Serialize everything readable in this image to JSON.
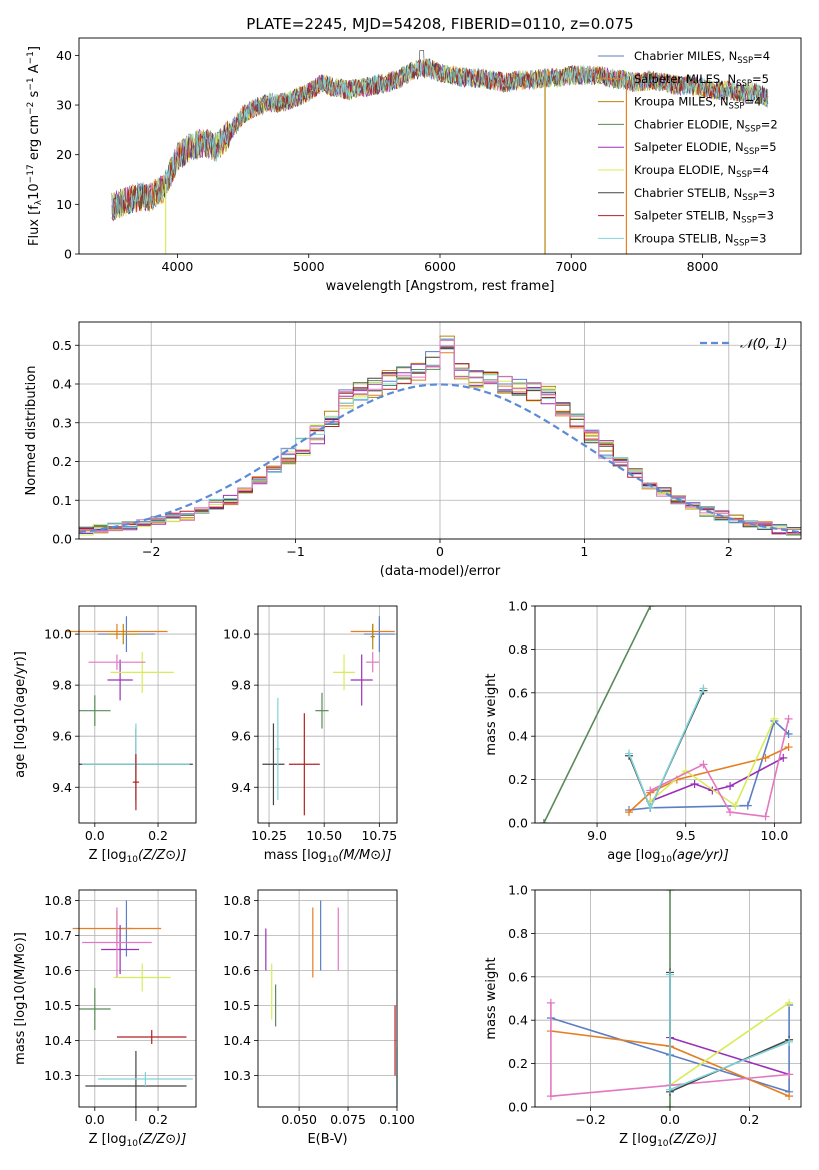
{
  "figure": {
    "title": "PLATE=2245, MJD=54208, FIBERID=0110, z=0.075"
  },
  "palette": {
    "miles_chab": "#5b7ec4",
    "miles_salp": "#e67e22",
    "miles_krou": "#b8860b",
    "elodie_chab": "#5a8a5a",
    "elodie_salp": "#9b30b8",
    "elodie_krou": "#d8ec5a",
    "stelib_chab": "#444444",
    "stelib_salp": "#b22222",
    "stelib_krou": "#7fd3d9",
    "hist_mix1": "#e377c2",
    "normal_curve": "#5b8bd6"
  },
  "chart_data": [
    {
      "id": "spectrum",
      "type": "line",
      "title": "PLATE=2245, MJD=54208, FIBERID=0110, z=0.075",
      "xlabel": "wavelength [Angstrom, rest frame]",
      "ylabel": "Flux [f_λ10^-17 erg cm^-2 s^-1 A^-1]",
      "xlim": [
        3250,
        8750
      ],
      "ylim": [
        0,
        43.5
      ],
      "xticks": [
        "4000",
        "5000",
        "6000",
        "7000",
        "8000"
      ],
      "yticks": [
        "0",
        "10",
        "20",
        "30",
        "40"
      ],
      "grid": false,
      "legend_position": "top-right",
      "series": [
        {
          "name": "Chabrier MILES, N_SSP=4",
          "color": "miles_chab"
        },
        {
          "name": "Salpeter MILES, N_SSP=5",
          "color": "miles_salp"
        },
        {
          "name": "Kroupa MILES, N_SSP=4",
          "color": "miles_krou"
        },
        {
          "name": "Chabrier ELODIE, N_SSP=2",
          "color": "elodie_chab"
        },
        {
          "name": "Salpeter ELODIE, N_SSP=5",
          "color": "elodie_salp"
        },
        {
          "name": "Kroupa ELODIE, N_SSP=4",
          "color": "elodie_krou"
        },
        {
          "name": "Chabrier STELIB, N_SSP=3",
          "color": "stelib_chab"
        },
        {
          "name": "Salpeter STELIB, N_SSP=3",
          "color": "stelib_salp"
        },
        {
          "name": "Kroupa STELIB, N_SSP=3",
          "color": "stelib_krou"
        }
      ],
      "envelope": {
        "x": [
          3500,
          3600,
          3700,
          3800,
          3900,
          4000,
          4100,
          4200,
          4300,
          4400,
          4500,
          4600,
          4700,
          4800,
          4900,
          5000,
          5100,
          5200,
          5300,
          5400,
          5500,
          5600,
          5700,
          5800,
          5900,
          6000,
          6100,
          6200,
          6300,
          6400,
          6500,
          6600,
          6700,
          6800,
          6900,
          7000,
          7100,
          7200,
          7300,
          7400,
          7500,
          7600,
          7700,
          7800,
          7900,
          8000,
          8100,
          8200,
          8300,
          8400,
          8500
        ],
        "y": [
          9.5,
          10.5,
          11.5,
          11.5,
          13.5,
          19.5,
          21.5,
          22.5,
          21.5,
          24.5,
          28.0,
          29.5,
          30.5,
          30.5,
          31.5,
          32.5,
          34.5,
          33.5,
          33.0,
          33.5,
          34.0,
          34.5,
          35.5,
          37.0,
          37.5,
          36.5,
          36.0,
          35.5,
          35.5,
          35.0,
          34.5,
          35.0,
          35.0,
          35.5,
          35.5,
          36.0,
          36.0,
          36.0,
          35.5,
          35.0,
          34.5,
          35.0,
          34.5,
          34.0,
          34.0,
          33.5,
          33.0,
          33.0,
          32.5,
          32.5,
          31.5
        ]
      },
      "dips": [
        {
          "x": 3910,
          "y": 0
        },
        {
          "x": 6800,
          "y": 0
        },
        {
          "x": 7420,
          "y": 0
        }
      ]
    },
    {
      "id": "residuals",
      "type": "line",
      "xlabel": "(data-model)/error",
      "ylabel": "Normed distribution",
      "xlim": [
        -2.5,
        2.5
      ],
      "ylim": [
        0,
        0.56
      ],
      "xticks": [
        -2,
        -1,
        0,
        1,
        2
      ],
      "xticklabels": [
        "−2",
        "−1",
        "0",
        "1",
        "2"
      ],
      "yticks": [
        0.0,
        0.1,
        0.2,
        0.3,
        0.4,
        0.5
      ],
      "yticklabels": [
        "0.0",
        "0.1",
        "0.2",
        "0.3",
        "0.4",
        "0.5"
      ],
      "grid": true,
      "legend_position": "top-right",
      "legend_label": "𝒩(0, 1)",
      "bin_width": 0.1,
      "bin_start": -2.5,
      "histogram": [
        0.02,
        0.025,
        0.03,
        0.035,
        0.04,
        0.05,
        0.055,
        0.06,
        0.075,
        0.09,
        0.1,
        0.12,
        0.15,
        0.18,
        0.21,
        0.24,
        0.27,
        0.31,
        0.36,
        0.38,
        0.39,
        0.41,
        0.42,
        0.43,
        0.46,
        0.5,
        0.43,
        0.41,
        0.41,
        0.4,
        0.39,
        0.38,
        0.37,
        0.34,
        0.3,
        0.27,
        0.23,
        0.2,
        0.17,
        0.14,
        0.12,
        0.1,
        0.085,
        0.07,
        0.06,
        0.05,
        0.04,
        0.035,
        0.025,
        0.02
      ]
    },
    {
      "id": "age_vs_Z",
      "type": "scatter",
      "xlabel": "Z [log10(Z/Z⊙)]",
      "ylabel": "age  [log10(age/yr)]",
      "xlim": [
        -0.05,
        0.32
      ],
      "ylim": [
        9.26,
        10.11
      ],
      "xticks": [
        0.0,
        0.2
      ],
      "xticklabels": [
        "0.0",
        "0.2"
      ],
      "yticks": [
        9.4,
        9.6,
        9.8,
        10.0
      ],
      "yticklabels": [
        "9.4",
        "9.6",
        "9.8",
        "10.0"
      ],
      "points": [
        {
          "x": 0.1,
          "y": 10.0,
          "xerr": 0.09,
          "yerr": 0.07,
          "color": "miles_chab"
        },
        {
          "x": 0.07,
          "y": 10.01,
          "xerr": 0.16,
          "yerr": 0.03,
          "color": "miles_salp"
        },
        {
          "x": 0.09,
          "y": 10.0,
          "xerr": 0.05,
          "yerr": 0.04,
          "color": "miles_krou"
        },
        {
          "x": 0.08,
          "y": 9.82,
          "xerr": 0.04,
          "yerr": 0.08,
          "color": "elodie_salp"
        },
        {
          "x": 0.15,
          "y": 9.85,
          "xerr": 0.1,
          "yerr": 0.08,
          "color": "elodie_krou"
        },
        {
          "x": 0.0,
          "y": 9.7,
          "xerr": 0.05,
          "yerr": 0.06,
          "color": "elodie_chab"
        },
        {
          "x": 0.13,
          "y": 9.49,
          "xerr": 0.18,
          "yerr": 0.14,
          "color": "stelib_chab"
        },
        {
          "x": 0.13,
          "y": 9.49,
          "xerr": 0.17,
          "yerr": 0.16,
          "color": "stelib_krou"
        },
        {
          "x": 0.13,
          "y": 9.42,
          "xerr": 0.01,
          "yerr": 0.11,
          "color": "stelib_salp"
        },
        {
          "x": 0.07,
          "y": 9.89,
          "xerr": 0.09,
          "yerr": 0.03,
          "color": "hist_mix1"
        }
      ]
    },
    {
      "id": "age_vs_mass",
      "type": "scatter",
      "xlabel": "mass [log10(M/M⊙)]",
      "xlim": [
        10.2,
        10.83
      ],
      "ylim": [
        9.26,
        10.11
      ],
      "xticks": [
        10.25,
        10.5,
        10.75
      ],
      "xticklabels": [
        "10.25",
        "10.50",
        "10.75"
      ],
      "yticks": [
        9.4,
        9.6,
        9.8,
        10.0
      ],
      "yticklabels": [
        "9.4",
        "9.6",
        "9.8",
        "10.0"
      ],
      "points": [
        {
          "x": 10.75,
          "y": 10.0,
          "xerr": 0.07,
          "yerr": 0.07,
          "color": "miles_chab"
        },
        {
          "x": 10.72,
          "y": 10.01,
          "xerr": 0.1,
          "yerr": 0.03,
          "color": "miles_salp"
        },
        {
          "x": 10.72,
          "y": 9.99,
          "xerr": 0.01,
          "yerr": 0.05,
          "color": "miles_krou"
        },
        {
          "x": 10.67,
          "y": 9.82,
          "xerr": 0.05,
          "yerr": 0.1,
          "color": "elodie_salp"
        },
        {
          "x": 10.59,
          "y": 9.85,
          "xerr": 0.05,
          "yerr": 0.07,
          "color": "elodie_krou"
        },
        {
          "x": 10.49,
          "y": 9.7,
          "xerr": 0.03,
          "yerr": 0.07,
          "color": "elodie_chab"
        },
        {
          "x": 10.27,
          "y": 9.49,
          "xerr": 0.05,
          "yerr": 0.16,
          "color": "stelib_chab"
        },
        {
          "x": 10.29,
          "y": 9.55,
          "xerr": 0.01,
          "yerr": 0.2,
          "color": "stelib_krou"
        },
        {
          "x": 10.41,
          "y": 9.49,
          "xerr": 0.07,
          "yerr": 0.2,
          "color": "stelib_salp"
        },
        {
          "x": 10.72,
          "y": 9.89,
          "xerr": 0.03,
          "yerr": 0.04,
          "color": "hist_mix1"
        }
      ]
    },
    {
      "id": "massweight_vs_age",
      "type": "line",
      "xlabel": "age  [log10(age/yr)]",
      "ylabel": "mass weight",
      "xlim": [
        8.65,
        10.15
      ],
      "ylim": [
        0,
        1.0
      ],
      "xticks": [
        9.0,
        9.5,
        10.0
      ],
      "xticklabels": [
        "9.0",
        "9.5",
        "10.0"
      ],
      "yticks": [
        0.0,
        0.2,
        0.4,
        0.6,
        0.8,
        1.0
      ],
      "yticklabels": [
        "0.0",
        "0.2",
        "0.4",
        "0.6",
        "0.8",
        "1.0"
      ],
      "grid": true,
      "series": [
        {
          "color": "elodie_chab",
          "x": [
            8.7,
            9.3
          ],
          "y": [
            0.0,
            1.0
          ]
        },
        {
          "color": "miles_chab",
          "x": [
            9.18,
            9.3,
            9.85,
            10.0,
            10.08
          ],
          "y": [
            0.06,
            0.07,
            0.08,
            0.47,
            0.41
          ]
        },
        {
          "color": "miles_salp",
          "x": [
            9.18,
            9.3,
            9.45,
            9.95,
            10.08
          ],
          "y": [
            0.05,
            0.14,
            0.2,
            0.3,
            0.35
          ]
        },
        {
          "color": "elodie_salp",
          "x": [
            9.3,
            9.55,
            9.65,
            9.75,
            10.05
          ],
          "y": [
            0.1,
            0.18,
            0.15,
            0.17,
            0.3
          ]
        },
        {
          "color": "elodie_krou",
          "x": [
            9.3,
            9.5,
            9.78,
            10.0
          ],
          "y": [
            0.1,
            0.24,
            0.08,
            0.48
          ]
        },
        {
          "color": "hist_mix1",
          "x": [
            9.3,
            9.6,
            9.75,
            9.95,
            10.08
          ],
          "y": [
            0.15,
            0.27,
            0.05,
            0.03,
            0.48
          ]
        },
        {
          "color": "stelib_chab",
          "x": [
            9.18,
            9.3,
            9.6
          ],
          "y": [
            0.31,
            0.07,
            0.61
          ]
        },
        {
          "color": "stelib_krou",
          "x": [
            9.18,
            9.3,
            9.6
          ],
          "y": [
            0.32,
            0.07,
            0.62
          ]
        }
      ]
    },
    {
      "id": "mass_vs_Z",
      "type": "scatter",
      "xlabel": "Z [log10(Z/Z⊙)]",
      "ylabel": "mass [log10(M/M⊙)]",
      "xlim": [
        -0.05,
        0.32
      ],
      "ylim": [
        10.21,
        10.83
      ],
      "xticks": [
        0.0,
        0.2
      ],
      "xticklabels": [
        "0.0",
        "0.2"
      ],
      "yticks": [
        10.3,
        10.4,
        10.5,
        10.6,
        10.7,
        10.8
      ],
      "yticklabels": [
        "10.3",
        "10.4",
        "10.5",
        "10.6",
        "10.7",
        "10.8"
      ],
      "points": [
        {
          "x": 0.1,
          "y": 10.72,
          "xerr": 0.02,
          "yerr": 0.08,
          "color": "miles_chab"
        },
        {
          "x": 0.07,
          "y": 10.72,
          "xerr": 0.14,
          "yerr": 0.05,
          "color": "miles_salp"
        },
        {
          "x": 0.08,
          "y": 10.66,
          "xerr": 0.06,
          "yerr": 0.07,
          "color": "elodie_salp"
        },
        {
          "x": 0.07,
          "y": 10.68,
          "xerr": 0.11,
          "yerr": 0.1,
          "color": "hist_mix1"
        },
        {
          "x": 0.15,
          "y": 10.58,
          "xerr": 0.09,
          "yerr": 0.04,
          "color": "elodie_krou"
        },
        {
          "x": 0.0,
          "y": 10.49,
          "xerr": 0.05,
          "yerr": 0.06,
          "color": "elodie_chab"
        },
        {
          "x": 0.18,
          "y": 10.41,
          "xerr": 0.11,
          "yerr": 0.02,
          "color": "stelib_salp"
        },
        {
          "x": 0.13,
          "y": 10.27,
          "xerr": 0.16,
          "yerr": 0.1,
          "color": "stelib_chab"
        },
        {
          "x": 0.16,
          "y": 10.29,
          "xerr": 0.15,
          "yerr": 0.02,
          "color": "stelib_krou"
        }
      ]
    },
    {
      "id": "mass_vs_ebv",
      "type": "scatter",
      "xlabel": "E(B-V)",
      "xlim": [
        0.029,
        0.1
      ],
      "ylim": [
        10.21,
        10.83
      ],
      "xticks": [
        0.05,
        0.075,
        0.1
      ],
      "xticklabels": [
        "0.050",
        "0.075",
        "0.100"
      ],
      "yticks": [
        10.3,
        10.4,
        10.5,
        10.6,
        10.7,
        10.8
      ],
      "yticklabels": [
        "10.3",
        "10.4",
        "10.5",
        "10.6",
        "10.7",
        "10.8"
      ],
      "points": [
        {
          "x": 0.033,
          "y": 10.66,
          "xerr": 0,
          "yerr": 0.06,
          "color": "elodie_salp"
        },
        {
          "x": 0.036,
          "y": 10.54,
          "xerr": 0,
          "yerr": 0.08,
          "color": "elodie_krou"
        },
        {
          "x": 0.038,
          "y": 10.5,
          "xerr": 0,
          "yerr": 0.06,
          "color": "elodie_chab"
        },
        {
          "x": 0.057,
          "y": 10.68,
          "xerr": 0,
          "yerr": 0.1,
          "color": "miles_salp"
        },
        {
          "x": 0.061,
          "y": 10.7,
          "xerr": 0,
          "yerr": 0.1,
          "color": "miles_chab"
        },
        {
          "x": 0.07,
          "y": 10.69,
          "xerr": 0,
          "yerr": 0.09,
          "color": "hist_mix1"
        },
        {
          "x": 0.099,
          "y": 10.4,
          "xerr": 0,
          "yerr": 0.1,
          "color": "stelib_salp"
        },
        {
          "x": 0.1,
          "y": 10.3,
          "xerr": 0,
          "yerr": 0.08,
          "color": "stelib_krou"
        }
      ]
    },
    {
      "id": "massweight_vs_Z",
      "type": "line",
      "xlabel": "Z [log10(Z/Z⊙)]",
      "ylabel": "mass weight",
      "xlim": [
        -0.34,
        0.33
      ],
      "ylim": [
        0,
        1.0
      ],
      "xticks": [
        -0.2,
        0.0,
        0.2
      ],
      "xticklabels": [
        "−0.2",
        "0.0",
        "0.2"
      ],
      "yticks": [
        0.0,
        0.2,
        0.4,
        0.6,
        0.8,
        1.0
      ],
      "yticklabels": [
        "0.0",
        "0.2",
        "0.4",
        "0.6",
        "0.8",
        "1.0"
      ],
      "grid": true,
      "series": [
        {
          "color": "elodie_chab",
          "x": [
            0.0,
            0.0
          ],
          "y": [
            0.0,
            1.0
          ]
        },
        {
          "color": "miles_chab",
          "x": [
            -0.3,
            0.0,
            0.3,
            0.3
          ],
          "y": [
            0.41,
            0.24,
            0.07,
            0.47
          ]
        },
        {
          "color": "miles_salp",
          "x": [
            -0.3,
            0.0,
            0.3
          ],
          "y": [
            0.35,
            0.28,
            0.05
          ]
        },
        {
          "color": "elodie_salp",
          "x": [
            0.0,
            0.3
          ],
          "y": [
            0.32,
            0.15
          ]
        },
        {
          "color": "elodie_krou",
          "x": [
            0.0,
            0.3
          ],
          "y": [
            0.1,
            0.48
          ]
        },
        {
          "color": "hist_mix1",
          "x": [
            -0.3,
            -0.3,
            0.3,
            0.0,
            0.0
          ],
          "y": [
            0.48,
            0.05,
            0.15,
            0.1,
            0.1
          ]
        },
        {
          "color": "stelib_chab",
          "x": [
            0.0,
            0.0,
            0.3
          ],
          "y": [
            0.62,
            0.07,
            0.31
          ]
        },
        {
          "color": "stelib_krou",
          "x": [
            0.0,
            0.0,
            0.3
          ],
          "y": [
            0.61,
            0.08,
            0.3
          ]
        }
      ]
    }
  ]
}
